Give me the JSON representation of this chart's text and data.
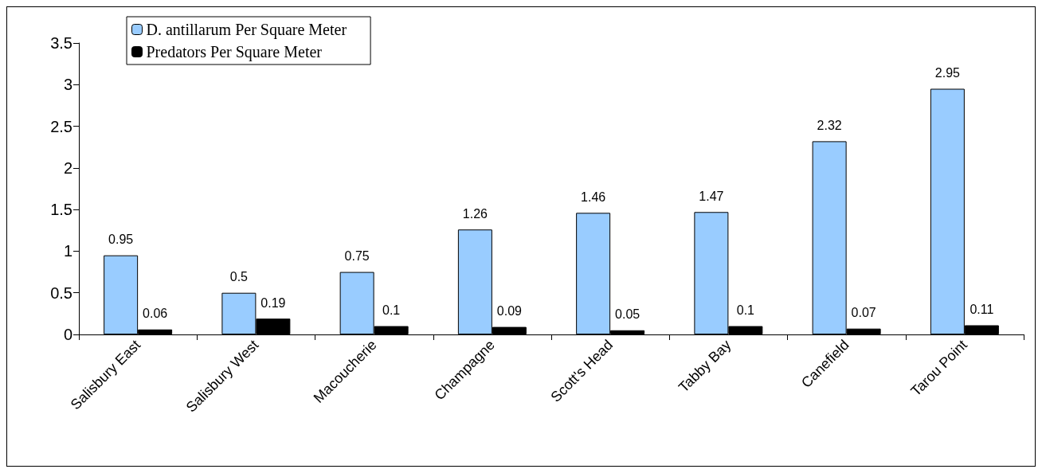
{
  "chart_data": {
    "type": "bar",
    "categories": [
      "Salisbury East",
      "Salisbury West",
      "Macoucherie",
      "Champagne",
      "Scott's Head",
      "Tabby Bay",
      "Canefield",
      "Tarou Point"
    ],
    "series": [
      {
        "name": "D. antillarum Per Square Meter",
        "color": "#99ccff",
        "values": [
          0.95,
          0.5,
          0.75,
          1.26,
          1.46,
          1.47,
          2.32,
          2.95
        ]
      },
      {
        "name": "Predators Per Square Meter",
        "color": "#000000",
        "values": [
          0.06,
          0.19,
          0.1,
          0.09,
          0.05,
          0.1,
          0.07,
          0.11
        ]
      }
    ],
    "ylim": [
      0,
      3.5
    ],
    "yticks": [
      0,
      0.5,
      1,
      1.5,
      2,
      2.5,
      3,
      3.5
    ],
    "grid": false,
    "legend": "top left",
    "data_labels": true
  }
}
